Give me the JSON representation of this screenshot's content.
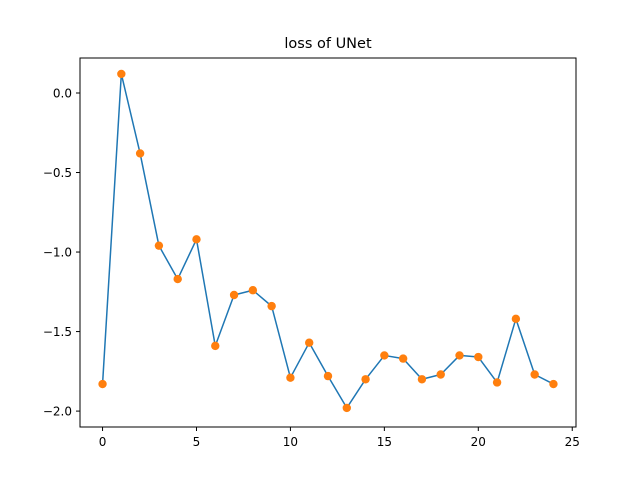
{
  "chart_data": {
    "type": "line",
    "title": "loss of UNet",
    "xlabel": "",
    "ylabel": "",
    "xlim": [
      -1.2,
      25.2
    ],
    "ylim": [
      -2.1,
      0.22
    ],
    "x_ticks": [
      0,
      5,
      10,
      15,
      20,
      25
    ],
    "y_ticks": [
      0.0,
      -0.5,
      -1.0,
      -1.5,
      -2.0
    ],
    "x_tick_labels": [
      "0",
      "5",
      "10",
      "15",
      "20",
      "25"
    ],
    "y_tick_labels": [
      "0.0",
      "−0.5",
      "−1.0",
      "−1.5",
      "−2.0"
    ],
    "grid": false,
    "series": [
      {
        "line_color": "#1f77b4",
        "marker_color": "#ff7f0e",
        "x": [
          0,
          1,
          2,
          3,
          4,
          5,
          6,
          7,
          8,
          9,
          10,
          11,
          12,
          13,
          14,
          15,
          16,
          17,
          18,
          19,
          20,
          21,
          22,
          23,
          24
        ],
        "y": [
          -1.83,
          0.12,
          -0.38,
          -0.96,
          -1.17,
          -0.92,
          -1.59,
          -1.27,
          -1.24,
          -1.34,
          -1.79,
          -1.57,
          -1.78,
          -1.98,
          -1.8,
          -1.65,
          -1.67,
          -1.8,
          -1.77,
          -1.65,
          -1.66,
          -1.82,
          -1.42,
          -1.77,
          -1.83
        ]
      }
    ]
  }
}
